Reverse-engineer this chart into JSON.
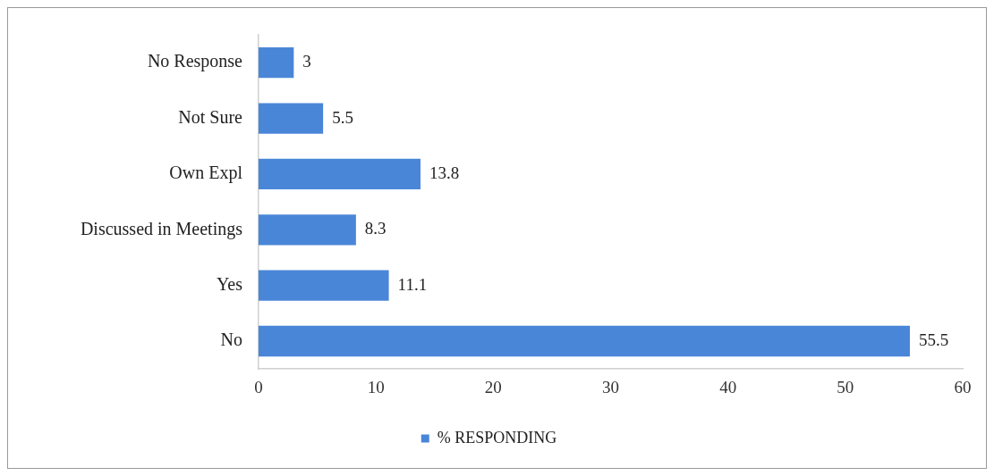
{
  "chart_data": {
    "type": "bar",
    "orientation": "horizontal",
    "categories": [
      "No Response",
      "Not Sure",
      "Own Expl",
      "Discussed in Meetings",
      "Yes",
      "No"
    ],
    "series": [
      {
        "name": "% RESPONDING",
        "color": "#4a86d8",
        "values": [
          3,
          5.5,
          13.8,
          8.3,
          11.1,
          55.5
        ]
      }
    ],
    "xlim": [
      0,
      60
    ],
    "xticks": [
      0,
      10,
      20,
      30,
      40,
      50,
      60
    ],
    "data_labels": true,
    "legend": "bottom"
  }
}
